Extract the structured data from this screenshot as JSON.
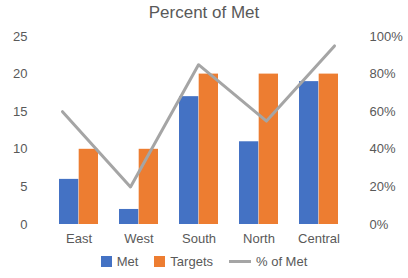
{
  "chart_data": {
    "type": "bar",
    "title": "Percent of Met",
    "categories": [
      "East",
      "West",
      "South",
      "North",
      "Central"
    ],
    "series": [
      {
        "name": "Met",
        "type": "bar",
        "color": "#4472c4",
        "values": [
          6,
          2,
          17,
          11,
          19
        ]
      },
      {
        "name": "Targets",
        "type": "bar",
        "color": "#ed7d31",
        "values": [
          10,
          10,
          20,
          20,
          20
        ]
      },
      {
        "name": "% of Met",
        "type": "line",
        "color": "#a5a5a5",
        "axis": "y2",
        "values": [
          60,
          20,
          85,
          55,
          95
        ]
      }
    ],
    "ylim": [
      0,
      25
    ],
    "yticks": [
      0,
      5,
      10,
      15,
      20,
      25
    ],
    "y2lim": [
      0,
      100
    ],
    "y2ticks": [
      {
        "value": 0,
        "label": "0%"
      },
      {
        "value": 20,
        "label": "20%"
      },
      {
        "value": 40,
        "label": "40%"
      },
      {
        "value": 60,
        "label": "60%"
      },
      {
        "value": 80,
        "label": "80%"
      },
      {
        "value": 100,
        "label": "100%"
      }
    ],
    "grid": false,
    "legend": "bottom"
  }
}
